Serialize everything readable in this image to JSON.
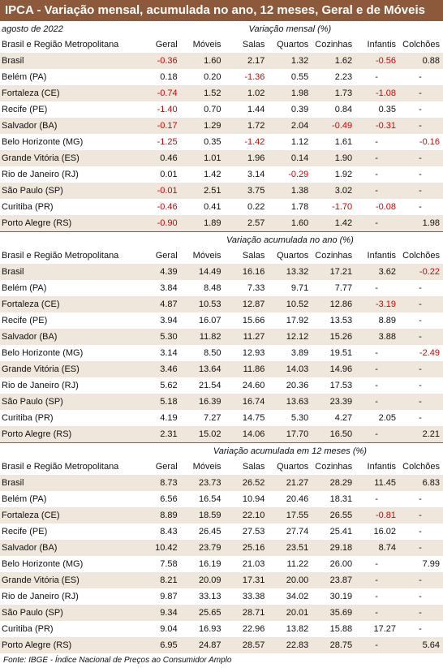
{
  "title": "IPCA - Variação mensal, acumulada no ano, 12 meses, Geral e de Móveis",
  "period": "agosto de 2022",
  "columns": [
    "Brasil e Região Metropolitana",
    "Geral",
    "Móveis",
    "Salas",
    "Quartos",
    "Cozinhas",
    "Infantis",
    "Colchões"
  ],
  "sections": [
    {
      "heading": "Variação mensal (%)",
      "rows": [
        {
          "region": "Brasil",
          "values": [
            "-0.36",
            "1.60",
            "2.17",
            "1.32",
            "1.62",
            "-0.56",
            "0.88"
          ]
        },
        {
          "region": "Belém (PA)",
          "values": [
            "0.18",
            "0.20",
            "-1.36",
            "0.55",
            "2.23",
            "-",
            "-"
          ]
        },
        {
          "region": "Fortaleza (CE)",
          "values": [
            "-0.74",
            "1.52",
            "1.02",
            "1.98",
            "1.73",
            "-1.08",
            "-"
          ]
        },
        {
          "region": "Recife (PE)",
          "values": [
            "-1.40",
            "0.70",
            "1.44",
            "0.39",
            "0.84",
            "0.35",
            "-"
          ]
        },
        {
          "region": "Salvador (BA)",
          "values": [
            "-0.17",
            "1.29",
            "1.72",
            "2.04",
            "-0.49",
            "-0.31",
            "-"
          ]
        },
        {
          "region": "Belo Horizonte (MG)",
          "values": [
            "-1.25",
            "0.35",
            "-1.42",
            "1.12",
            "1.61",
            "-",
            "-0.16"
          ]
        },
        {
          "region": "Grande Vitória (ES)",
          "values": [
            "0.46",
            "1.01",
            "1.96",
            "0.14",
            "1.90",
            "-",
            "-"
          ]
        },
        {
          "region": "Rio de Janeiro (RJ)",
          "values": [
            "0.01",
            "1.42",
            "3.14",
            "-0.29",
            "1.92",
            "-",
            "-"
          ]
        },
        {
          "region": "São Paulo (SP)",
          "values": [
            "-0.01",
            "2.51",
            "3.75",
            "1.38",
            "3.02",
            "-",
            "-"
          ]
        },
        {
          "region": "Curitiba (PR)",
          "values": [
            "-0.46",
            "0.41",
            "0.22",
            "1.78",
            "-1.70",
            "-0.08",
            "-"
          ]
        },
        {
          "region": "Porto Alegre (RS)",
          "values": [
            "-0.90",
            "1.89",
            "2.57",
            "1.60",
            "1.42",
            "-",
            "1.98"
          ]
        }
      ]
    },
    {
      "heading": "Variação acumulada no ano (%)",
      "rows": [
        {
          "region": "Brasil",
          "values": [
            "4.39",
            "14.49",
            "16.16",
            "13.32",
            "17.21",
            "3.62",
            "-0.22"
          ]
        },
        {
          "region": "Belém (PA)",
          "values": [
            "3.84",
            "8.48",
            "7.33",
            "9.71",
            "7.77",
            "-",
            "-"
          ]
        },
        {
          "region": "Fortaleza (CE)",
          "values": [
            "4.87",
            "10.53",
            "12.87",
            "10.52",
            "12.86",
            "-3.19",
            "-"
          ]
        },
        {
          "region": "Recife (PE)",
          "values": [
            "3.94",
            "16.07",
            "15.66",
            "17.92",
            "13.53",
            "8.89",
            "-"
          ]
        },
        {
          "region": "Salvador (BA)",
          "values": [
            "5.30",
            "11.82",
            "11.27",
            "12.12",
            "15.26",
            "3.88",
            "-"
          ]
        },
        {
          "region": "Belo Horizonte (MG)",
          "values": [
            "3.14",
            "8.50",
            "12.93",
            "3.89",
            "19.51",
            "-",
            "-2.49"
          ]
        },
        {
          "region": "Grande Vitória (ES)",
          "values": [
            "3.46",
            "13.64",
            "11.86",
            "14.03",
            "14.96",
            "-",
            "-"
          ]
        },
        {
          "region": "Rio de Janeiro (RJ)",
          "values": [
            "5.62",
            "21.54",
            "24.60",
            "20.36",
            "17.53",
            "-",
            "-"
          ]
        },
        {
          "region": "São Paulo (SP)",
          "values": [
            "5.18",
            "16.39",
            "16.74",
            "13.63",
            "23.39",
            "-",
            "-"
          ]
        },
        {
          "region": "Curitiba (PR)",
          "values": [
            "4.19",
            "7.27",
            "14.75",
            "5.30",
            "4.27",
            "2.05",
            "-"
          ]
        },
        {
          "region": "Porto Alegre (RS)",
          "values": [
            "2.31",
            "15.02",
            "14.06",
            "17.70",
            "16.50",
            "-",
            "2.21"
          ]
        }
      ]
    },
    {
      "heading": "Variação acumulada em 12 meses (%)",
      "rows": [
        {
          "region": "Brasil",
          "values": [
            "8.73",
            "23.73",
            "26.52",
            "21.27",
            "28.29",
            "11.45",
            "6.83"
          ]
        },
        {
          "region": "Belém (PA)",
          "values": [
            "6.56",
            "16.54",
            "10.94",
            "20.46",
            "18.31",
            "-",
            "-"
          ]
        },
        {
          "region": "Fortaleza (CE)",
          "values": [
            "8.89",
            "18.59",
            "22.10",
            "17.55",
            "26.55",
            "-0.81",
            "-"
          ]
        },
        {
          "region": "Recife (PE)",
          "values": [
            "8.43",
            "26.45",
            "27.53",
            "27.74",
            "25.41",
            "16.02",
            "-"
          ]
        },
        {
          "region": "Salvador (BA)",
          "values": [
            "10.42",
            "23.79",
            "25.16",
            "23.51",
            "29.18",
            "8.74",
            "-"
          ]
        },
        {
          "region": "Belo Horizonte (MG)",
          "values": [
            "7.58",
            "16.19",
            "21.03",
            "11.22",
            "26.00",
            "-",
            "7.99"
          ]
        },
        {
          "region": "Grande Vitória (ES)",
          "values": [
            "8.21",
            "20.09",
            "17.31",
            "20.00",
            "23.87",
            "-",
            "-"
          ]
        },
        {
          "region": "Rio de Janeiro (RJ)",
          "values": [
            "9.87",
            "33.13",
            "33.38",
            "34.02",
            "30.19",
            "-",
            "-"
          ]
        },
        {
          "region": "São Paulo (SP)",
          "values": [
            "9.34",
            "25.65",
            "28.71",
            "20.01",
            "35.69",
            "-",
            "-"
          ]
        },
        {
          "region": "Curitiba (PR)",
          "values": [
            "9.04",
            "16.93",
            "22.96",
            "13.82",
            "15.88",
            "17.27",
            "-"
          ]
        },
        {
          "region": "Porto Alegre (RS)",
          "values": [
            "6.95",
            "24.87",
            "28.57",
            "22.83",
            "28.75",
            "-",
            "5.64"
          ]
        }
      ]
    }
  ],
  "source": "Fonte: IBGE - Índice Nacional de Preços ao Consumidor Amplo",
  "colors": {
    "header_bg": "#8c5a3a",
    "shade": "#efe6dc",
    "negative": "#d40000"
  }
}
